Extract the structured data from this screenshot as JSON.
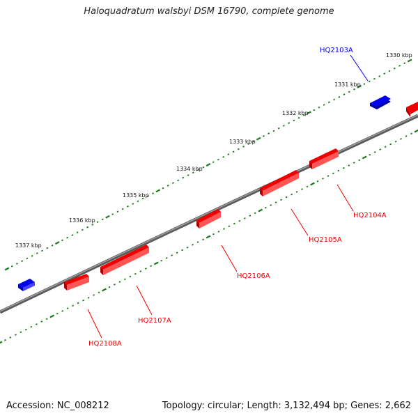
{
  "title": "Haloquadratum walsbyi DSM 16790, complete genome",
  "footer": {
    "accession": "Accession: NC_008212",
    "summary": "Topology: circular; Length: 3,132,494 bp; Genes: 2,662"
  },
  "colors": {
    "forward_gene": "#0000ee",
    "reverse_gene": "#ee0000",
    "backbone": "#808080",
    "tick": "#1a7a1a"
  },
  "scale_labels": [
    "1330 kbp",
    "1331 kbp",
    "1332 kbp",
    "1333 kbp",
    "1334 kbp",
    "1335 kbp",
    "1336 kbp",
    "1337 kbp"
  ],
  "genes": [
    {
      "label": "HQ2103A",
      "strand": "forward"
    },
    {
      "label": "HQ2104A",
      "strand": "reverse"
    },
    {
      "label": "HQ2105A",
      "strand": "reverse"
    },
    {
      "label": "HQ2106A",
      "strand": "reverse"
    },
    {
      "label": "HQ2107A",
      "strand": "reverse"
    },
    {
      "label": "HQ2108A",
      "strand": "reverse"
    }
  ]
}
